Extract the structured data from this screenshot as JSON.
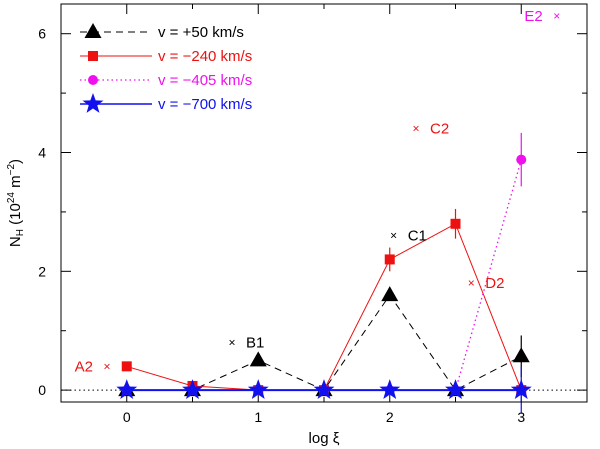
{
  "chart_data": {
    "type": "line",
    "xlabel": "log ξ",
    "ylabel": "N",
    "ylabel_sub": "H",
    "ylabel_units": " (10",
    "ylabel_exp": "24",
    "ylabel_units2": " m",
    "ylabel_exp2": "−2",
    "ylabel_close": ")",
    "xlim": [
      -0.5,
      3.5
    ],
    "ylim": [
      -0.2,
      6.5
    ],
    "xticks": [
      0,
      1,
      2,
      3
    ],
    "xtick_labels": [
      "0",
      "1",
      "2",
      "3"
    ],
    "yticks": [
      0,
      2,
      4,
      6
    ],
    "ytick_labels": [
      "0",
      "2",
      "4",
      "6"
    ],
    "x_minor_step": 0.5,
    "y_minor_step": 1,
    "zero_line": "dotted",
    "legend_position": "top-left",
    "series": [
      {
        "name": "v = +50 km/s",
        "color": "#000000",
        "marker": "triangle",
        "line": "dashed",
        "x": [
          0,
          0.5,
          1,
          1.5,
          2,
          2.5,
          3
        ],
        "y": [
          0.0,
          0.0,
          0.5,
          0.0,
          1.6,
          0.0,
          0.57
        ],
        "err": [
          0,
          0,
          0,
          0,
          0.1,
          0,
          0.35
        ]
      },
      {
        "name": "v = −240 km/s",
        "color": "#ee1111",
        "marker": "square",
        "line": "solid",
        "x": [
          0,
          0.5,
          1,
          1.5,
          2,
          2.5,
          3
        ],
        "y": [
          0.4,
          0.07,
          0.0,
          0.0,
          2.2,
          2.8,
          0.0
        ],
        "err": [
          0,
          0,
          0,
          0,
          0.2,
          0.25,
          0
        ]
      },
      {
        "name": "v = −405 km/s",
        "color": "#ee11ee",
        "marker": "circle",
        "line": "dotted",
        "x": [
          0,
          0.5,
          1,
          1.5,
          2,
          2.5,
          3
        ],
        "y": [
          0,
          0,
          0,
          0,
          0,
          0,
          3.88
        ],
        "err": [
          0,
          0,
          0,
          0,
          0,
          0,
          0.45
        ]
      },
      {
        "name": "v = −700 km/s",
        "color": "#1111ee",
        "marker": "star",
        "line": "solid",
        "x": [
          0,
          0.5,
          1,
          1.5,
          2,
          2.5,
          3
        ],
        "y": [
          0,
          0,
          0,
          0,
          0,
          0,
          0
        ],
        "err": [
          0,
          0,
          0,
          0,
          0,
          0,
          0.4
        ]
      }
    ],
    "annotations": [
      {
        "label": "A2",
        "x": -0.15,
        "y": 0.4,
        "color": "#ee1111"
      },
      {
        "label": "B1",
        "x": 0.8,
        "y": 0.8,
        "color": "#000000"
      },
      {
        "label": "C1",
        "x": 2.03,
        "y": 2.6,
        "color": "#000000"
      },
      {
        "label": "C2",
        "x": 2.2,
        "y": 4.4,
        "color": "#ee1111"
      },
      {
        "label": "D2",
        "x": 2.62,
        "y": 1.8,
        "color": "#ee1111"
      },
      {
        "label": "E2",
        "x": 3.27,
        "y": 6.3,
        "color": "#ee11ee"
      }
    ]
  }
}
